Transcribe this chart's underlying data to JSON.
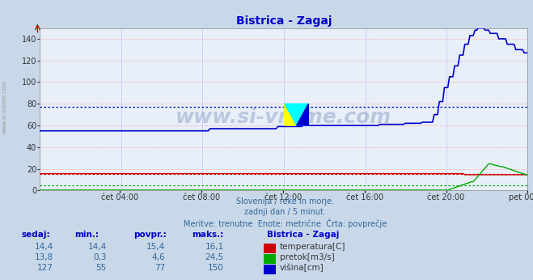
{
  "title": "Bistrica - Zagaj",
  "bg_color": "#c8d8e8",
  "plot_bg_color": "#e8eff8",
  "grid_color_h": "#ff9999",
  "grid_color_v": "#9999ff",
  "ylim": [
    0,
    150
  ],
  "yticks": [
    0,
    20,
    40,
    60,
    80,
    100,
    120,
    140
  ],
  "xlabel_ticks": [
    "čet 04:00",
    "čet 08:00",
    "čet 12:00",
    "čet 16:00",
    "čet 20:00",
    "pet 00:00"
  ],
  "xlabel_fracs": [
    0.167,
    0.333,
    0.5,
    0.667,
    0.833,
    1.0
  ],
  "avg_temp": 15.4,
  "avg_pretok": 4.6,
  "avg_visina": 77,
  "subtitle1": "Slovenija / reke in morje.",
  "subtitle2": "zadnji dan / 5 minut.",
  "subtitle3": "Meritve: trenutne  Enote: metrične  Črta: povprečje",
  "table_data": [
    [
      "14,4",
      "14,4",
      "15,4",
      "16,1",
      "temperatura[C]",
      "#cc0000"
    ],
    [
      "13,8",
      "0,3",
      "4,6",
      "24,5",
      "pretok[m3/s]",
      "#00aa00"
    ],
    [
      "127",
      "55",
      "77",
      "150",
      "višina[cm]",
      "#0000cc"
    ]
  ],
  "legend_title": "Bistrica - Zagaj",
  "watermark": "www.si-vreme.com",
  "temp_color": "#cc0000",
  "pretok_color": "#00aa00",
  "visina_color": "#0000cc",
  "n_points": 288
}
